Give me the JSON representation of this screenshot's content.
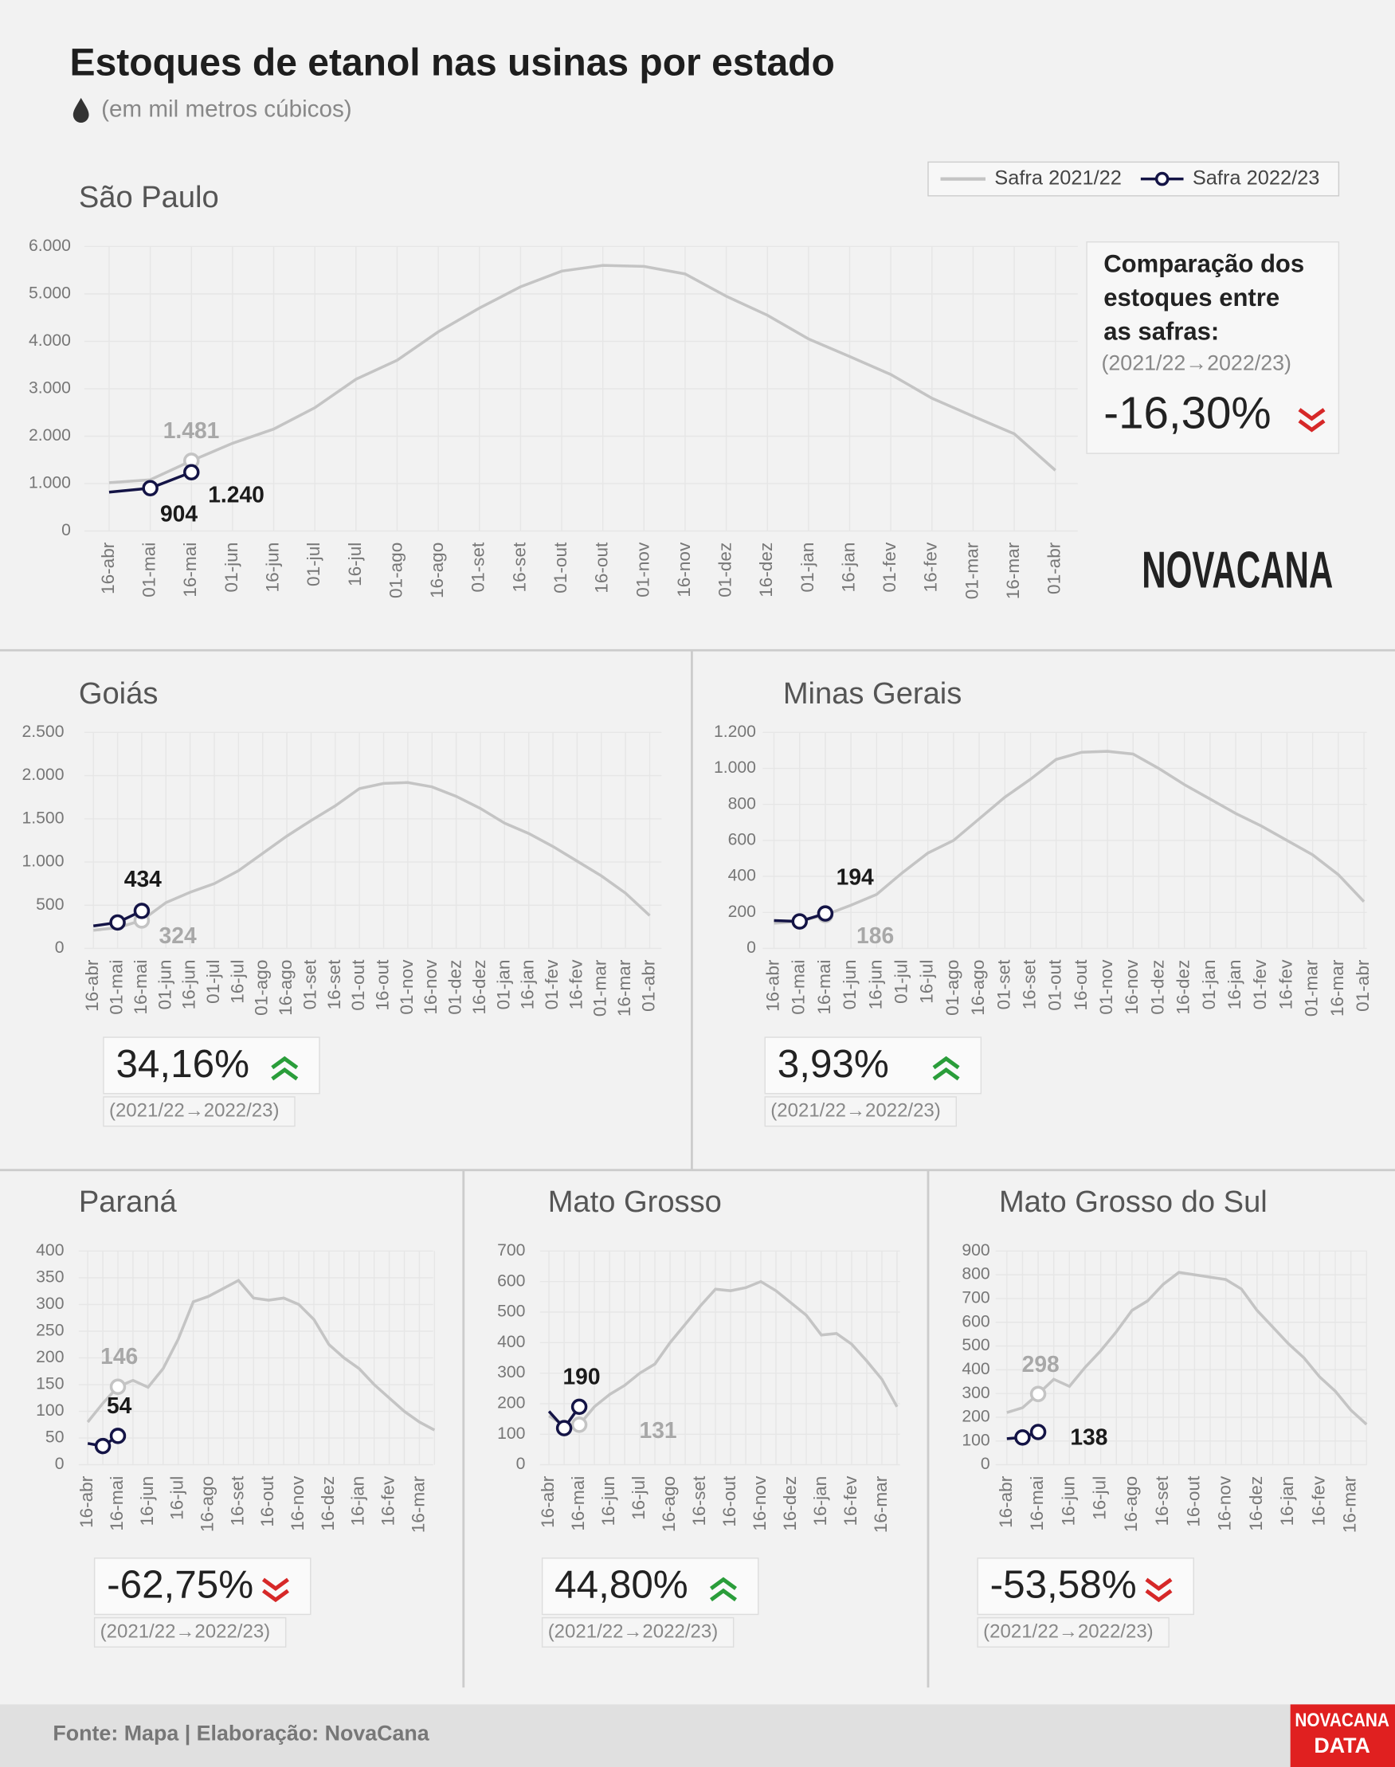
{
  "title": "Estoques de etanol nas usinas por estado",
  "subtitle": "(em mil metros cúbicos)",
  "logo": "NOVACANA",
  "footer": "Fonte: Mapa | Elaboração: NovaCana",
  "footer_logo": [
    "NOVACANA",
    "DATA"
  ],
  "chart_data": [
    {
      "type": "line",
      "title": "São Paulo",
      "legend": "top-right",
      "grid": true,
      "categories": [
        "16-abr",
        "01-mai",
        "16-mai",
        "01-jun",
        "16-jun",
        "01-jul",
        "16-jul",
        "01-ago",
        "16-ago",
        "01-set",
        "16-set",
        "01-out",
        "16-out",
        "01-nov",
        "16-nov",
        "01-dez",
        "16-dez",
        "01-jan",
        "16-jan",
        "01-fev",
        "16-fev",
        "01-mar",
        "16-mar",
        "01-abr"
      ],
      "series": [
        {
          "name": "Safra 2021/22",
          "color": "#c4c4c4",
          "values": [
            1020,
            1080,
            1481,
            1850,
            2150,
            2600,
            3200,
            3600,
            4200,
            4700,
            5150,
            5480,
            5600,
            5580,
            5420,
            4950,
            4550,
            4050,
            3680,
            3300,
            2800,
            2420,
            2050,
            1280
          ],
          "value_labels": [
            null,
            null,
            "1.481",
            null,
            null,
            null,
            null,
            null,
            null,
            null,
            null,
            null,
            null,
            null,
            null,
            null,
            null,
            null,
            null,
            null,
            null,
            null,
            null,
            null
          ]
        },
        {
          "name": "Safra 2022/23",
          "color": "#141446",
          "values": [
            820,
            904,
            1240,
            null,
            null,
            null,
            null,
            null,
            null,
            null,
            null,
            null,
            null,
            null,
            null,
            null,
            null,
            null,
            null,
            null,
            null,
            null,
            null,
            null
          ],
          "value_labels": [
            null,
            "904",
            "1.240",
            null,
            null,
            null,
            null,
            null,
            null,
            null,
            null,
            null,
            null,
            null,
            null,
            null,
            null,
            null,
            null,
            null,
            null,
            null,
            null,
            null
          ]
        }
      ],
      "ylim": [
        0,
        6000
      ],
      "yticks": [
        0,
        {
          "value": 1000,
          "label": "1.000"
        },
        {
          "value": 2000,
          "label": "2.000"
        },
        {
          "value": 3000,
          "label": "3.000"
        },
        {
          "value": 4000,
          "label": "4.000"
        },
        {
          "value": 5000,
          "label": "5.000"
        },
        {
          "value": 6000,
          "label": "6.000"
        }
      ],
      "comparison": {
        "heading": [
          "Comparação dos",
          "estoques entre",
          "as safras:"
        ],
        "period": "(2021/22→2022/23)",
        "change": "-16,30%",
        "trend": "down",
        "color": "#d62828"
      }
    },
    {
      "type": "line",
      "title": "Goiás",
      "grid": true,
      "categories": [
        "16-abr",
        "01-mai",
        "16-mai",
        "01-jun",
        "16-jun",
        "01-jul",
        "16-jul",
        "01-ago",
        "16-ago",
        "01-set",
        "16-set",
        "01-out",
        "16-out",
        "01-nov",
        "16-nov",
        "01-dez",
        "16-dez",
        "01-jan",
        "16-jan",
        "01-fev",
        "16-fev",
        "01-mar",
        "16-mar",
        "01-abr"
      ],
      "series": [
        {
          "name": "Safra 2021/22",
          "color": "#c4c4c4",
          "values": [
            210,
            240,
            324,
            530,
            650,
            750,
            900,
            1100,
            1300,
            1480,
            1650,
            1850,
            1910,
            1920,
            1870,
            1760,
            1620,
            1450,
            1330,
            1180,
            1010,
            840,
            640,
            380
          ],
          "value_labels": [
            null,
            null,
            "324",
            null,
            null,
            null,
            null,
            null,
            null,
            null,
            null,
            null,
            null,
            null,
            null,
            null,
            null,
            null,
            null,
            null,
            null,
            null,
            null,
            null
          ]
        },
        {
          "name": "Safra 2022/23",
          "color": "#141446",
          "values": [
            260,
            300,
            434,
            null,
            null,
            null,
            null,
            null,
            null,
            null,
            null,
            null,
            null,
            null,
            null,
            null,
            null,
            null,
            null,
            null,
            null,
            null,
            null,
            null
          ],
          "value_labels": [
            null,
            null,
            "434",
            null,
            null,
            null,
            null,
            null,
            null,
            null,
            null,
            null,
            null,
            null,
            null,
            null,
            null,
            null,
            null,
            null,
            null,
            null,
            null,
            null
          ]
        }
      ],
      "ylim": [
        0,
        2500
      ],
      "yticks": [
        0,
        500,
        {
          "value": 1000,
          "label": "1.000"
        },
        {
          "value": 1500,
          "label": "1.500"
        },
        {
          "value": 2000,
          "label": "2.000"
        },
        {
          "value": 2500,
          "label": "2.500"
        }
      ],
      "comparison": {
        "period": "(2021/22→2022/23)",
        "change": "34,16%",
        "trend": "up",
        "color": "#2a9d3a"
      }
    },
    {
      "type": "line",
      "title": "Minas Gerais",
      "grid": true,
      "categories": [
        "16-abr",
        "01-mai",
        "16-mai",
        "01-jun",
        "16-jun",
        "01-jul",
        "16-jul",
        "01-ago",
        "16-ago",
        "01-set",
        "16-set",
        "01-out",
        "16-out",
        "01-nov",
        "16-nov",
        "01-dez",
        "16-dez",
        "01-jan",
        "16-jan",
        "01-fev",
        "16-fev",
        "01-mar",
        "16-mar",
        "01-abr"
      ],
      "series": [
        {
          "name": "Safra 2021/22",
          "color": "#c4c4c4",
          "values": [
            140,
            150,
            186,
            240,
            300,
            420,
            530,
            600,
            720,
            840,
            940,
            1050,
            1090,
            1095,
            1080,
            1000,
            910,
            830,
            750,
            680,
            600,
            520,
            410,
            260
          ],
          "value_labels": [
            null,
            null,
            "186",
            null,
            null,
            null,
            null,
            null,
            null,
            null,
            null,
            null,
            null,
            null,
            null,
            null,
            null,
            null,
            null,
            null,
            null,
            null,
            null,
            null
          ]
        },
        {
          "name": "Safra 2022/23",
          "color": "#141446",
          "values": [
            155,
            150,
            194,
            null,
            null,
            null,
            null,
            null,
            null,
            null,
            null,
            null,
            null,
            null,
            null,
            null,
            null,
            null,
            null,
            null,
            null,
            null,
            null,
            null
          ],
          "value_labels": [
            null,
            null,
            "194",
            null,
            null,
            null,
            null,
            null,
            null,
            null,
            null,
            null,
            null,
            null,
            null,
            null,
            null,
            null,
            null,
            null,
            null,
            null,
            null,
            null
          ]
        }
      ],
      "ylim": [
        0,
        1200
      ],
      "yticks": [
        0,
        200,
        400,
        600,
        800,
        {
          "value": 1000,
          "label": "1.000"
        },
        {
          "value": 1200,
          "label": "1.200"
        }
      ],
      "comparison": {
        "period": "(2021/22→2022/23)",
        "change": "3,93%",
        "trend": "up",
        "color": "#2a9d3a"
      }
    },
    {
      "type": "line",
      "title": "Paraná",
      "grid": true,
      "categories": [
        "16-abr",
        null,
        "16-mai",
        null,
        "16-jun",
        null,
        "16-jul",
        null,
        "16-ago",
        null,
        "16-set",
        null,
        "16-out",
        null,
        "16-nov",
        null,
        "16-dez",
        null,
        "16-jan",
        null,
        "16-fev",
        null,
        "16-mar",
        null
      ],
      "series": [
        {
          "name": "Safra 2021/22",
          "color": "#c4c4c4",
          "values": [
            80,
            115,
            146,
            158,
            145,
            180,
            235,
            305,
            315,
            330,
            345,
            312,
            308,
            312,
            300,
            272,
            225,
            200,
            180,
            150,
            125,
            100,
            80,
            65
          ],
          "value_labels": [
            null,
            null,
            "146",
            null,
            null,
            null,
            null,
            null,
            null,
            null,
            null,
            null,
            null,
            null,
            null,
            null,
            null,
            null,
            null,
            null,
            null,
            null,
            null,
            null
          ]
        },
        {
          "name": "Safra 2022/23",
          "color": "#141446",
          "values": [
            40,
            35,
            54,
            null,
            null,
            null,
            null,
            null,
            null,
            null,
            null,
            null,
            null,
            null,
            null,
            null,
            null,
            null,
            null,
            null,
            null,
            null,
            null,
            null
          ],
          "value_labels": [
            null,
            null,
            "54",
            null,
            null,
            null,
            null,
            null,
            null,
            null,
            null,
            null,
            null,
            null,
            null,
            null,
            null,
            null,
            null,
            null,
            null,
            null,
            null,
            null
          ]
        }
      ],
      "ylim": [
        0,
        400
      ],
      "yticks": [
        0,
        50,
        100,
        150,
        200,
        250,
        300,
        350,
        400
      ],
      "comparison": {
        "period": "(2021/22→2022/23)",
        "change": "-62,75%",
        "trend": "down",
        "color": "#d62828"
      }
    },
    {
      "type": "line",
      "title": "Mato Grosso",
      "grid": true,
      "categories": [
        "16-abr",
        null,
        "16-mai",
        null,
        "16-jun",
        null,
        "16-jul",
        null,
        "16-ago",
        null,
        "16-set",
        null,
        "16-out",
        null,
        "16-nov",
        null,
        "16-dez",
        null,
        "16-jan",
        null,
        "16-fev",
        null,
        "16-mar",
        null
      ],
      "series": [
        {
          "name": "Safra 2021/22",
          "color": "#c4c4c4",
          "values": [
            160,
            130,
            131,
            190,
            230,
            260,
            300,
            330,
            400,
            460,
            520,
            575,
            570,
            580,
            600,
            570,
            530,
            490,
            425,
            430,
            395,
            340,
            280,
            190
          ],
          "value_labels": [
            null,
            null,
            "131",
            null,
            null,
            null,
            null,
            null,
            null,
            null,
            null,
            null,
            null,
            null,
            null,
            null,
            null,
            null,
            null,
            null,
            null,
            null,
            null,
            null
          ]
        },
        {
          "name": "Safra 2022/23",
          "color": "#141446",
          "values": [
            175,
            120,
            190,
            null,
            null,
            null,
            null,
            null,
            null,
            null,
            null,
            null,
            null,
            null,
            null,
            null,
            null,
            null,
            null,
            null,
            null,
            null,
            null,
            null
          ],
          "value_labels": [
            null,
            null,
            "190",
            null,
            null,
            null,
            null,
            null,
            null,
            null,
            null,
            null,
            null,
            null,
            null,
            null,
            null,
            null,
            null,
            null,
            null,
            null,
            null,
            null
          ]
        }
      ],
      "ylim": [
        0,
        700
      ],
      "yticks": [
        0,
        100,
        200,
        300,
        400,
        500,
        600,
        700
      ],
      "comparison": {
        "period": "(2021/22→2022/23)",
        "change": "44,80%",
        "trend": "up",
        "color": "#2a9d3a"
      }
    },
    {
      "type": "line",
      "title": "Mato Grosso do Sul",
      "grid": true,
      "categories": [
        "16-abr",
        null,
        "16-mai",
        null,
        "16-jun",
        null,
        "16-jul",
        null,
        "16-ago",
        null,
        "16-set",
        null,
        "16-out",
        null,
        "16-nov",
        null,
        "16-dez",
        null,
        "16-jan",
        null,
        "16-fev",
        null,
        "16-mar",
        null
      ],
      "series": [
        {
          "name": "Safra 2021/22",
          "color": "#c4c4c4",
          "values": [
            220,
            240,
            298,
            360,
            330,
            410,
            480,
            560,
            650,
            690,
            760,
            810,
            800,
            790,
            780,
            740,
            650,
            580,
            510,
            450,
            370,
            310,
            230,
            170
          ],
          "value_labels": [
            null,
            null,
            "298",
            null,
            null,
            null,
            null,
            null,
            null,
            null,
            null,
            null,
            null,
            null,
            null,
            null,
            null,
            null,
            null,
            null,
            null,
            null,
            null,
            null
          ]
        },
        {
          "name": "Safra 2022/23",
          "color": "#141446",
          "values": [
            110,
            115,
            138,
            null,
            null,
            null,
            null,
            null,
            null,
            null,
            null,
            null,
            null,
            null,
            null,
            null,
            null,
            null,
            null,
            null,
            null,
            null,
            null,
            null
          ],
          "value_labels": [
            null,
            null,
            "138",
            null,
            null,
            null,
            null,
            null,
            null,
            null,
            null,
            null,
            null,
            null,
            null,
            null,
            null,
            null,
            null,
            null,
            null,
            null,
            null,
            null
          ]
        }
      ],
      "ylim": [
        0,
        900
      ],
      "yticks": [
        0,
        100,
        200,
        300,
        400,
        500,
        600,
        700,
        800,
        900
      ],
      "comparison": {
        "period": "(2021/22→2022/23)",
        "change": "-53,58%",
        "trend": "down",
        "color": "#d62828"
      }
    }
  ]
}
